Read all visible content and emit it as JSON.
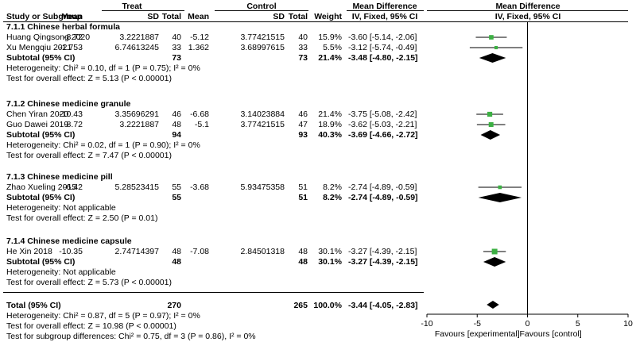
{
  "header": {
    "group_treat": "Treat",
    "group_control": "Control",
    "md_title": "Mean Difference",
    "md_method": "IV, Fixed, 95% CI",
    "plot_title": "Mean Difference",
    "plot_method": "IV, Fixed, 95% CI",
    "columns": [
      "Study or Subgroup",
      "Mean",
      "SD",
      "Total",
      "Mean",
      "SD",
      "Total",
      "Weight"
    ]
  },
  "chart_data": {
    "type": "forest",
    "xlim": [
      -10,
      10
    ],
    "ticks": [
      "-10",
      "-5",
      "0",
      "5",
      "10"
    ],
    "tick_values": [
      -10,
      -5,
      0,
      5,
      10
    ],
    "favours_left": "Favours [experimental]",
    "favours_right": "Favours [control]",
    "subgroups": [
      {
        "title": "7.1.1 Chinese herbal formula",
        "studies": [
          {
            "name": "Huang Qingsong 2020",
            "t_mean": "-8.72",
            "t_sd": "3.2221887",
            "t_n": "40",
            "c_mean": "-5.12",
            "c_sd": "3.77421515",
            "c_n": "40",
            "weight": "15.9%",
            "ci_text": "-3.60 [-5.14, -2.06]",
            "md": -3.6,
            "lo": -5.14,
            "hi": -2.06,
            "w": 15.9
          },
          {
            "name": "Xu Mengqiu 2021",
            "t_mean": "-1.753",
            "t_sd": "6.74613245",
            "t_n": "33",
            "c_mean": "1.362",
            "c_sd": "3.68997615",
            "c_n": "33",
            "weight": "5.5%",
            "ci_text": "-3.12 [-5.74, -0.49]",
            "md": -3.12,
            "lo": -5.74,
            "hi": -0.49,
            "w": 5.5
          }
        ],
        "subtotal": {
          "label": "Subtotal (95% CI)",
          "t_n": "73",
          "c_n": "73",
          "weight": "21.4%",
          "ci_text": "-3.48 [-4.80, -2.15]",
          "md": -3.48,
          "lo": -4.8,
          "hi": -2.15
        },
        "heterogeneity": "Heterogeneity: Chi² = 0.10, df = 1 (P = 0.75); I² = 0%",
        "overall_test": "Test for overall effect: Z = 5.13 (P < 0.00001)"
      },
      {
        "title": "7.1.2 Chinese medicine granule",
        "studies": [
          {
            "name": "Chen Yiran 2020",
            "t_mean": "-10.43",
            "t_sd": "3.35696291",
            "t_n": "46",
            "c_mean": "-6.68",
            "c_sd": "3.14023884",
            "c_n": "46",
            "weight": "21.4%",
            "ci_text": "-3.75 [-5.08, -2.42]",
            "md": -3.75,
            "lo": -5.08,
            "hi": -2.42,
            "w": 21.4
          },
          {
            "name": "Guo Dawei 2019",
            "t_mean": "-8.72",
            "t_sd": "3.2221887",
            "t_n": "48",
            "c_mean": "-5.1",
            "c_sd": "3.77421515",
            "c_n": "47",
            "weight": "18.9%",
            "ci_text": "-3.62 [-5.03, -2.21]",
            "md": -3.62,
            "lo": -5.03,
            "hi": -2.21,
            "w": 18.9
          }
        ],
        "subtotal": {
          "label": "Subtotal (95% CI)",
          "t_n": "94",
          "c_n": "93",
          "weight": "40.3%",
          "ci_text": "-3.69 [-4.66, -2.72]",
          "md": -3.69,
          "lo": -4.66,
          "hi": -2.72
        },
        "heterogeneity": "Heterogeneity: Chi² = 0.02, df = 1 (P = 0.90); I² = 0%",
        "overall_test": "Test for overall effect: Z = 7.47 (P < 0.00001)"
      },
      {
        "title": "7.1.3 Chinese medicine pill",
        "studies": [
          {
            "name": "Zhao Xueling 2015",
            "t_mean": "-6.42",
            "t_sd": "5.28523415",
            "t_n": "55",
            "c_mean": "-3.68",
            "c_sd": "5.93475358",
            "c_n": "51",
            "weight": "8.2%",
            "ci_text": "-2.74 [-4.89, -0.59]",
            "md": -2.74,
            "lo": -4.89,
            "hi": -0.59,
            "w": 8.2
          }
        ],
        "subtotal": {
          "label": "Subtotal (95% CI)",
          "t_n": "55",
          "c_n": "51",
          "weight": "8.2%",
          "ci_text": "-2.74 [-4.89, -0.59]",
          "md": -2.74,
          "lo": -4.89,
          "hi": -0.59
        },
        "heterogeneity": "Heterogeneity: Not applicable",
        "overall_test": "Test for overall effect: Z = 2.50 (P = 0.01)"
      },
      {
        "title": "7.1.4 Chinese medicine capsule",
        "studies": [
          {
            "name": "He Xin 2018",
            "t_mean": "-10.35",
            "t_sd": "2.74714397",
            "t_n": "48",
            "c_mean": "-7.08",
            "c_sd": "2.84501318",
            "c_n": "48",
            "weight": "30.1%",
            "ci_text": "-3.27 [-4.39, -2.15]",
            "md": -3.27,
            "lo": -4.39,
            "hi": -2.15,
            "w": 30.1
          }
        ],
        "subtotal": {
          "label": "Subtotal (95% CI)",
          "t_n": "48",
          "c_n": "48",
          "weight": "30.1%",
          "ci_text": "-3.27 [-4.39, -2.15]",
          "md": -3.27,
          "lo": -4.39,
          "hi": -2.15
        },
        "heterogeneity": "Heterogeneity: Not applicable",
        "overall_test": "Test for overall effect: Z = 5.73 (P < 0.00001)"
      }
    ],
    "total": {
      "label": "Total (95% CI)",
      "t_n": "270",
      "c_n": "265",
      "weight": "100.0%",
      "ci_text": "-3.44 [-4.05, -2.83]",
      "md": -3.44,
      "lo": -4.05,
      "hi": -2.83
    },
    "total_heterogeneity": "Heterogeneity: Chi² = 0.87, df = 5 (P = 0.97); I² = 0%",
    "total_overall_test": "Test for overall effect: Z = 10.98 (P < 0.00001)",
    "subgroup_test": "Test for subgroup differences: Chi² = 0.75, df = 3 (P = 0.86), I² = 0%",
    "colors": {
      "study_marker": "#3cb043",
      "diamond": "#000000",
      "lines": "#000000"
    }
  }
}
